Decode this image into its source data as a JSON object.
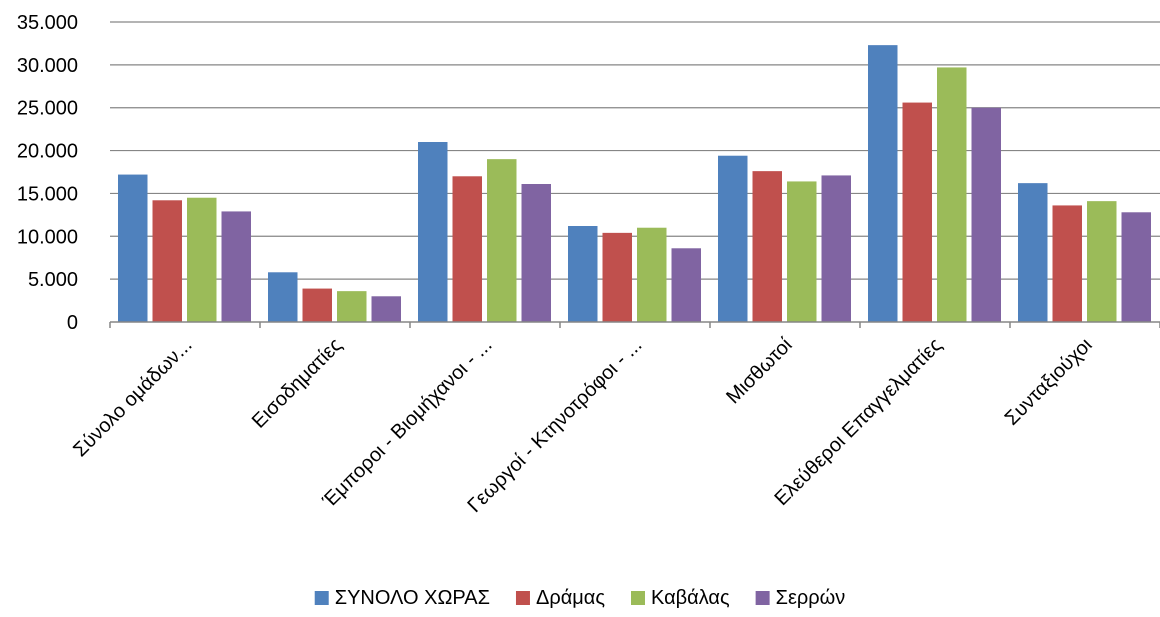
{
  "chart_data": {
    "type": "bar",
    "categories": [
      "Σύνολο ομάδων...",
      "Εισοδηματίες",
      "Έμποροι - Βιομήχανοι - ...",
      "Γεωργοί - Κτηνοτρόφοι - ...",
      "Μισθωτοί",
      "Ελεύθεροι Επαγγελματίες",
      "Συνταξιούχοι"
    ],
    "series": [
      {
        "name": "ΣΥΝΟΛΟ ΧΩΡΑΣ",
        "color": "#4F81BD",
        "values": [
          17200,
          5800,
          21000,
          11200,
          19400,
          32300,
          16200
        ]
      },
      {
        "name": "Δράμας",
        "color": "#C0504D",
        "values": [
          14200,
          3900,
          17000,
          10400,
          17600,
          25600,
          13600
        ]
      },
      {
        "name": "Καβάλας",
        "color": "#9BBB59",
        "values": [
          14500,
          3600,
          19000,
          11000,
          16400,
          29700,
          14100
        ]
      },
      {
        "name": "Σερρών",
        "color": "#8064A2",
        "values": [
          12900,
          3000,
          16100,
          8600,
          17100,
          25000,
          12800
        ]
      }
    ],
    "yticks": [
      "0",
      "5.000",
      "10.000",
      "15.000",
      "20.000",
      "25.000",
      "30.000",
      "35.000"
    ],
    "ylim": [
      0,
      35000
    ],
    "grid": true,
    "legend_position": "bottom",
    "title": "",
    "xlabel": "",
    "ylabel": ""
  }
}
